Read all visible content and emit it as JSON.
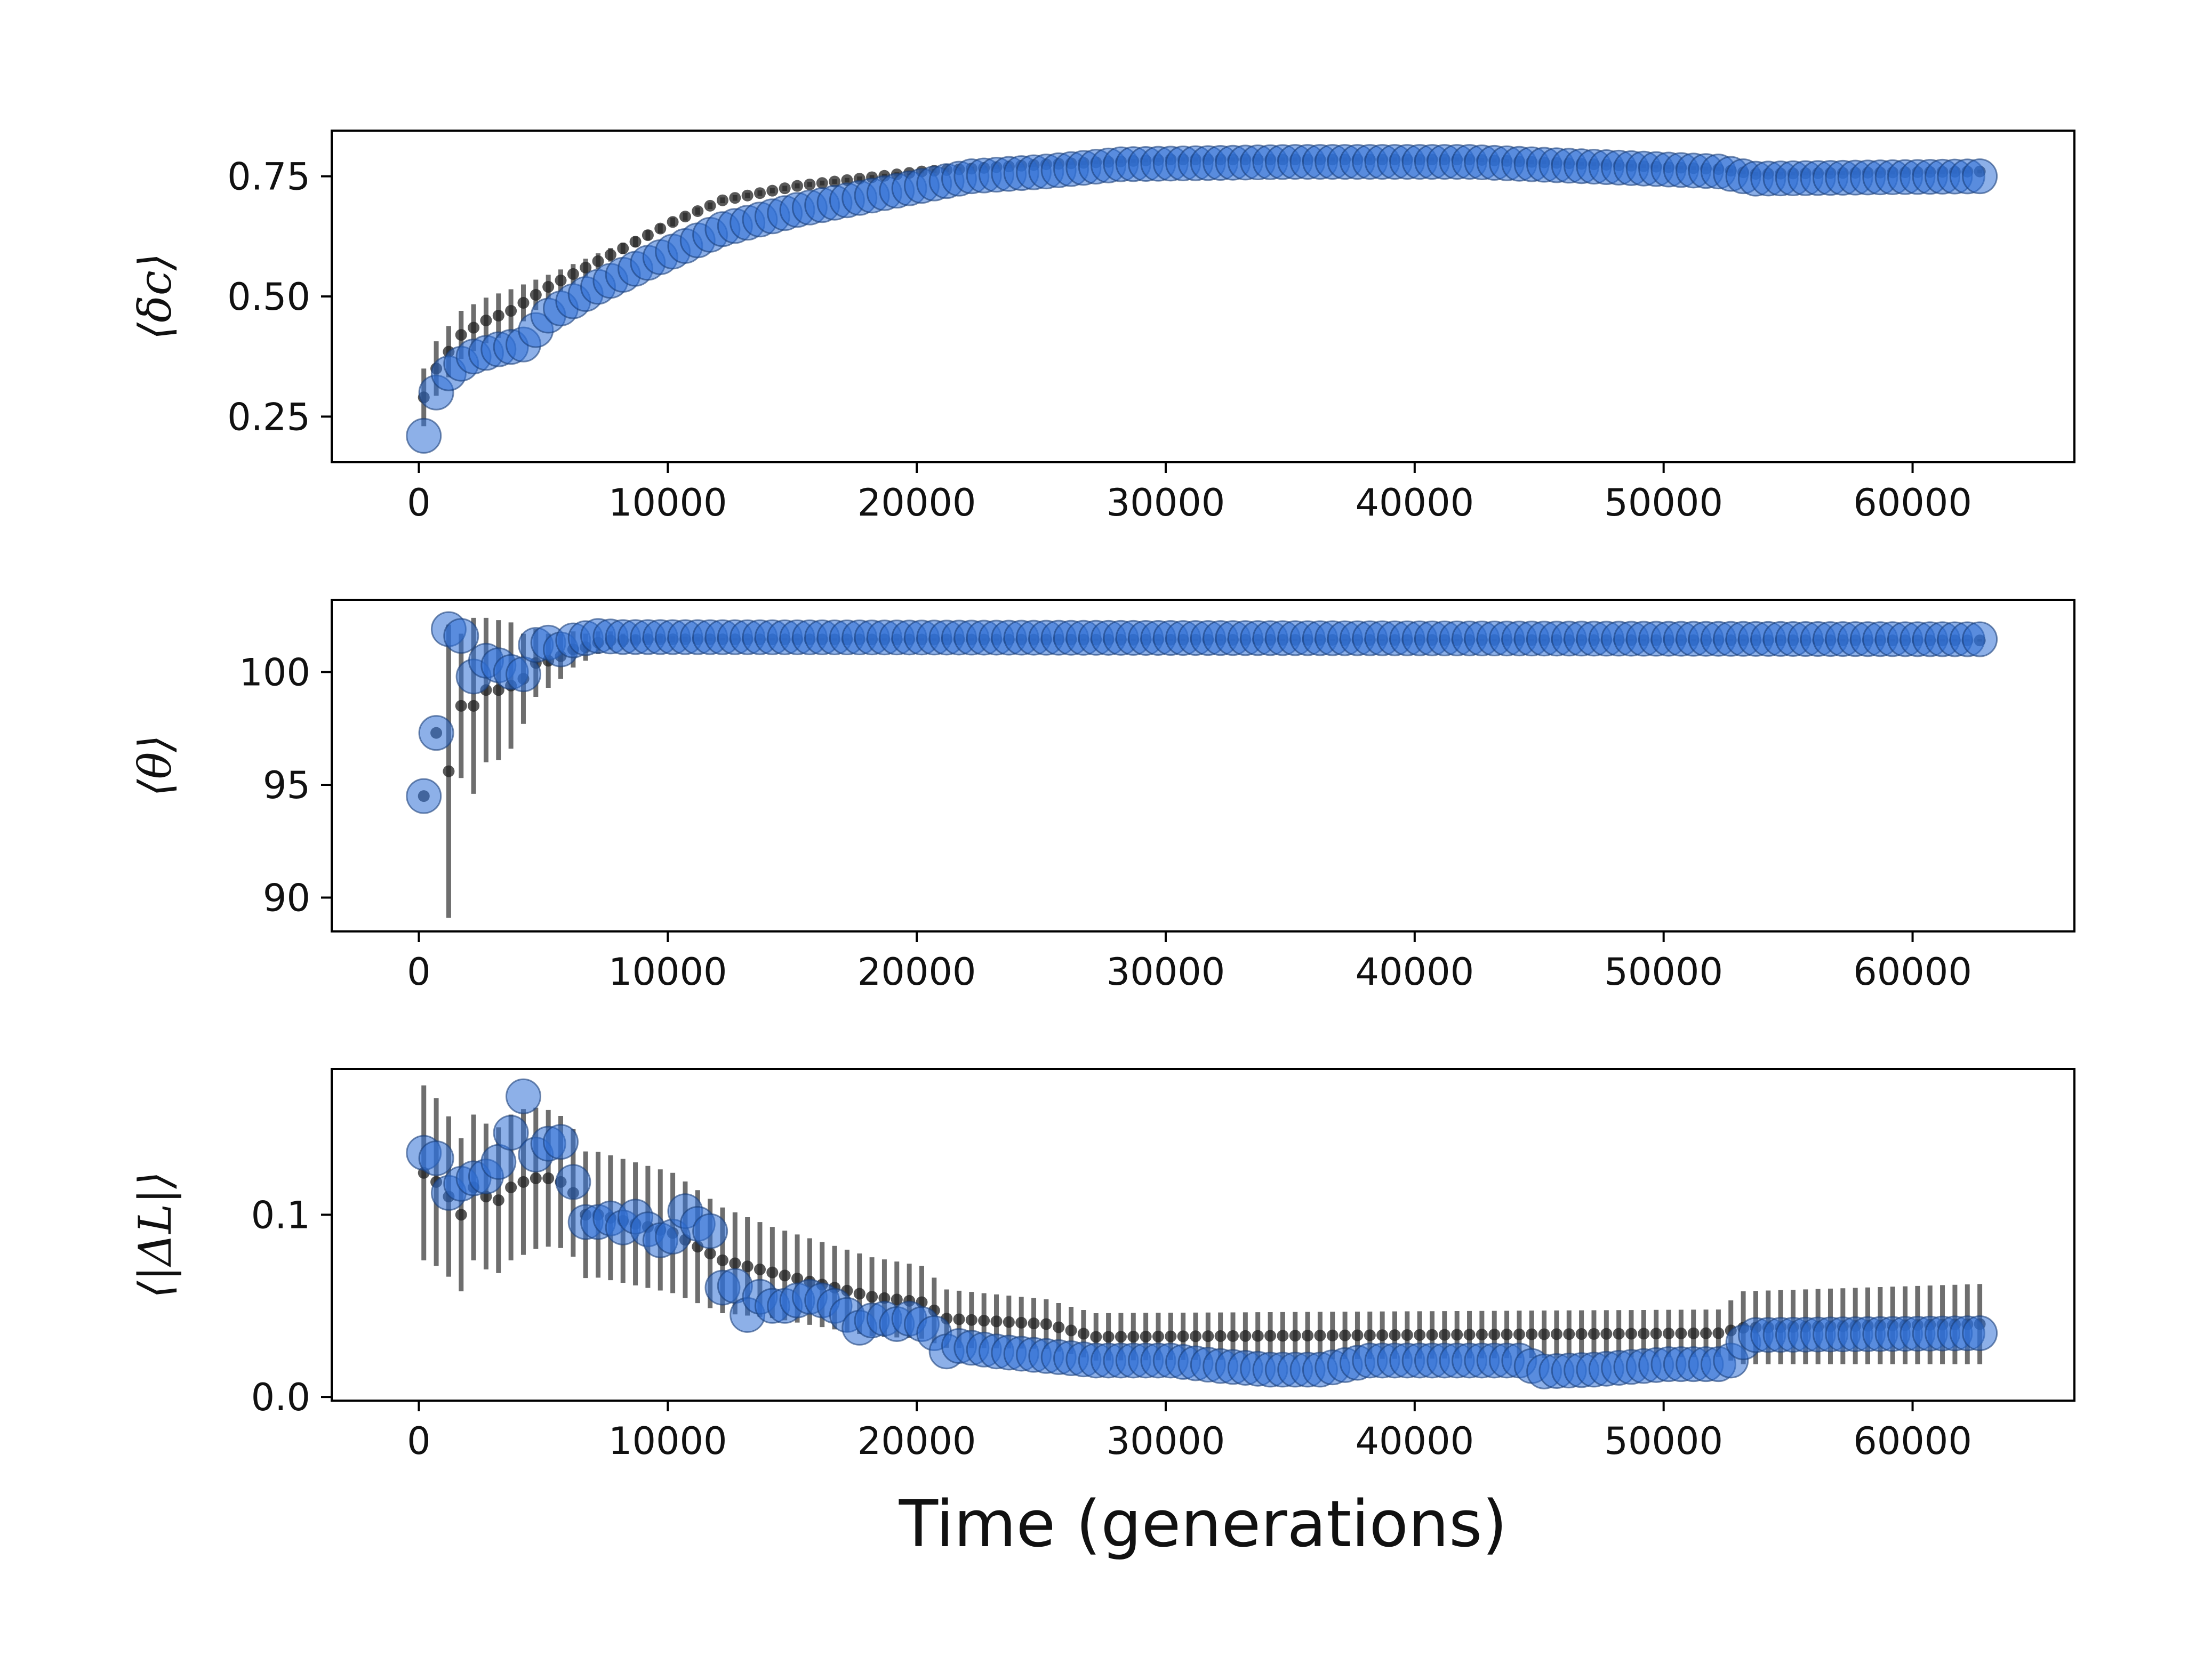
{
  "colors": {
    "marker_fill": "#2f6fd6",
    "marker_edge": "#1a3f7a",
    "mean_dot": "#222222",
    "errorbar": "#555555",
    "axes": "#000000"
  },
  "chart_data": [
    {
      "type": "scatter",
      "ylabel": "⟨δc⟩",
      "xlabel": "",
      "xlim": [
        -3500,
        66500
      ],
      "ylim": [
        0.155,
        0.845
      ],
      "xticks": [
        0,
        10000,
        20000,
        30000,
        40000,
        50000,
        60000
      ],
      "xtick_labels": [
        "0",
        "10000",
        "20000",
        "30000",
        "40000",
        "50000",
        "60000"
      ],
      "yticks": [
        0.25,
        0.5,
        0.75
      ],
      "ytick_labels": [
        "0.25",
        "0.50",
        "0.75"
      ],
      "circles": {
        "x_start": 200,
        "x_step": 500,
        "n": 126,
        "anchors": [
          [
            200,
            0.21
          ],
          [
            700,
            0.3
          ],
          [
            1200,
            0.34
          ],
          [
            1700,
            0.36
          ],
          [
            2200,
            0.375
          ],
          [
            3200,
            0.39
          ],
          [
            4200,
            0.4
          ],
          [
            5200,
            0.46
          ],
          [
            7200,
            0.52
          ],
          [
            9200,
            0.57
          ],
          [
            12200,
            0.64
          ],
          [
            15200,
            0.68
          ],
          [
            20200,
            0.73
          ],
          [
            22200,
            0.75
          ],
          [
            25200,
            0.76
          ],
          [
            28200,
            0.775
          ],
          [
            35200,
            0.78
          ],
          [
            42200,
            0.78
          ],
          [
            47200,
            0.77
          ],
          [
            52200,
            0.76
          ],
          [
            53700,
            0.745
          ],
          [
            62700,
            0.75
          ]
        ]
      },
      "means": {
        "x_start": 200,
        "x_step": 500,
        "n": 126,
        "anchors": [
          [
            200,
            0.29
          ],
          [
            700,
            0.35
          ],
          [
            1700,
            0.42
          ],
          [
            2700,
            0.45
          ],
          [
            3700,
            0.47
          ],
          [
            5200,
            0.52
          ],
          [
            8200,
            0.6
          ],
          [
            10200,
            0.655
          ],
          [
            12200,
            0.7
          ],
          [
            15200,
            0.73
          ],
          [
            20200,
            0.76
          ],
          [
            25200,
            0.775
          ],
          [
            30200,
            0.785
          ],
          [
            42200,
            0.785
          ],
          [
            47200,
            0.775
          ],
          [
            52200,
            0.765
          ],
          [
            53700,
            0.755
          ],
          [
            62700,
            0.76
          ]
        ]
      },
      "error": {
        "anchors": [
          [
            200,
            0.06
          ],
          [
            1700,
            0.05
          ],
          [
            3700,
            0.045
          ],
          [
            5200,
            0.025
          ],
          [
            8200,
            0.012
          ],
          [
            12200,
            0.006
          ],
          [
            20200,
            0.004
          ],
          [
            62700,
            0.004
          ]
        ]
      }
    },
    {
      "type": "scatter",
      "ylabel": "⟨θ⟩",
      "xlabel": "",
      "xlim": [
        -3500,
        66500
      ],
      "ylim": [
        88.5,
        103.2
      ],
      "xticks": [
        0,
        10000,
        20000,
        30000,
        40000,
        50000,
        60000
      ],
      "xtick_labels": [
        "0",
        "10000",
        "20000",
        "30000",
        "40000",
        "50000",
        "60000"
      ],
      "yticks": [
        90,
        95,
        100
      ],
      "ytick_labels": [
        "90",
        "95",
        "100"
      ],
      "circles": {
        "x_start": 200,
        "x_step": 500,
        "n": 126,
        "points": [
          [
            200,
            94.5
          ],
          [
            700,
            97.3
          ],
          [
            1200,
            101.9
          ],
          [
            1700,
            101.6
          ],
          [
            2200,
            99.8
          ],
          [
            2700,
            100.5
          ],
          [
            3200,
            100.3
          ],
          [
            3700,
            100.0
          ],
          [
            4200,
            99.9
          ],
          [
            4700,
            101.2
          ],
          [
            5200,
            101.3
          ],
          [
            5700,
            101.0
          ],
          [
            6200,
            101.4
          ],
          [
            6700,
            101.5
          ],
          [
            7200,
            101.6
          ]
        ],
        "anchors": [
          [
            7200,
            101.6
          ],
          [
            8200,
            101.55
          ],
          [
            62700,
            101.45
          ]
        ]
      },
      "means": {
        "x_start": 200,
        "x_step": 500,
        "n": 126,
        "points": [
          [
            1200,
            95.6
          ],
          [
            1700,
            98.5
          ],
          [
            2200,
            98.5
          ],
          [
            2700,
            99.2
          ],
          [
            3200,
            99.2
          ],
          [
            3700,
            99.4
          ],
          [
            4200,
            99.7
          ],
          [
            4700,
            100.4
          ],
          [
            5200,
            100.5
          ],
          [
            5700,
            100.7
          ],
          [
            6200,
            101.0
          ],
          [
            6700,
            101.1
          ],
          [
            7200,
            101.3
          ],
          [
            7700,
            101.4
          ],
          [
            8200,
            101.4
          ]
        ],
        "anchors": [
          [
            200,
            94.5
          ],
          [
            700,
            97.3
          ],
          [
            8200,
            101.4
          ],
          [
            9200,
            101.45
          ],
          [
            62700,
            101.4
          ]
        ]
      },
      "error": {
        "points": [
          [
            1200,
            6.5
          ],
          [
            1700,
            3.2
          ],
          [
            2200,
            3.9
          ],
          [
            2700,
            3.2
          ],
          [
            3200,
            3.1
          ],
          [
            3700,
            2.8
          ],
          [
            4200,
            2.0
          ],
          [
            4700,
            1.5
          ],
          [
            5200,
            1.2
          ],
          [
            5700,
            1.0
          ],
          [
            6200,
            0.8
          ],
          [
            6700,
            0.6
          ],
          [
            7200,
            0.5
          ],
          [
            7700,
            0.4
          ],
          [
            8200,
            0.3
          ]
        ],
        "anchors": [
          [
            200,
            0
          ],
          [
            700,
            0
          ],
          [
            8700,
            0.2
          ],
          [
            12200,
            0.05
          ],
          [
            62700,
            0.05
          ]
        ]
      }
    },
    {
      "type": "scatter",
      "ylabel": "⟨|ΔL|⟩",
      "xlabel": "Time (generations)",
      "xlim": [
        -3500,
        66500
      ],
      "ylim": [
        -0.002,
        0.18
      ],
      "xticks": [
        0,
        10000,
        20000,
        30000,
        40000,
        50000,
        60000
      ],
      "xtick_labels": [
        "0",
        "10000",
        "20000",
        "30000",
        "40000",
        "50000",
        "60000"
      ],
      "yticks": [
        0.0,
        0.1
      ],
      "ytick_labels": [
        "0.0",
        "0.1"
      ],
      "circles": {
        "x_start": 200,
        "x_step": 500,
        "n": 126,
        "points": [
          [
            200,
            0.134
          ],
          [
            700,
            0.131
          ],
          [
            1200,
            0.112
          ],
          [
            1700,
            0.117
          ],
          [
            2200,
            0.12
          ],
          [
            2700,
            0.121
          ],
          [
            3200,
            0.129
          ],
          [
            3700,
            0.145
          ],
          [
            4200,
            0.165
          ],
          [
            4700,
            0.133
          ],
          [
            5200,
            0.139
          ],
          [
            5700,
            0.14
          ],
          [
            6200,
            0.118
          ],
          [
            6700,
            0.096
          ],
          [
            7200,
            0.096
          ],
          [
            7700,
            0.098
          ],
          [
            8200,
            0.093
          ],
          [
            8700,
            0.099
          ],
          [
            9200,
            0.092
          ],
          [
            9700,
            0.086
          ],
          [
            10200,
            0.088
          ],
          [
            10700,
            0.102
          ],
          [
            11200,
            0.095
          ],
          [
            11700,
            0.091
          ],
          [
            12200,
            0.06
          ],
          [
            12700,
            0.061
          ],
          [
            13200,
            0.045
          ],
          [
            13700,
            0.055
          ],
          [
            14200,
            0.05
          ],
          [
            14700,
            0.05
          ],
          [
            15200,
            0.053
          ],
          [
            15700,
            0.055
          ],
          [
            16200,
            0.053
          ],
          [
            16700,
            0.05
          ],
          [
            17200,
            0.045
          ],
          [
            17700,
            0.038
          ],
          [
            18200,
            0.042
          ],
          [
            18700,
            0.043
          ],
          [
            19200,
            0.04
          ],
          [
            19700,
            0.043
          ],
          [
            20200,
            0.04
          ],
          [
            20700,
            0.035
          ],
          [
            21200,
            0.025
          ],
          [
            21700,
            0.028
          ]
        ],
        "anchors": [
          [
            21700,
            0.028
          ],
          [
            23200,
            0.025
          ],
          [
            27200,
            0.02
          ],
          [
            30200,
            0.02
          ],
          [
            32200,
            0.017
          ],
          [
            34200,
            0.015
          ],
          [
            36200,
            0.015
          ],
          [
            38200,
            0.02
          ],
          [
            42200,
            0.02
          ],
          [
            44200,
            0.02
          ],
          [
            45200,
            0.014
          ],
          [
            47200,
            0.015
          ],
          [
            50200,
            0.018
          ],
          [
            52200,
            0.018
          ],
          [
            52700,
            0.02
          ],
          [
            53200,
            0.03
          ],
          [
            53700,
            0.034
          ],
          [
            62700,
            0.035
          ]
        ]
      },
      "means": {
        "x_start": 200,
        "x_step": 500,
        "n": 126,
        "points": [
          [
            200,
            0.123
          ],
          [
            700,
            0.118
          ],
          [
            1200,
            0.11
          ],
          [
            1700,
            0.1
          ],
          [
            2200,
            0.115
          ],
          [
            2700,
            0.11
          ],
          [
            3200,
            0.108
          ],
          [
            3700,
            0.115
          ],
          [
            4200,
            0.118
          ],
          [
            4700,
            0.12
          ],
          [
            5200,
            0.12
          ],
          [
            5700,
            0.118
          ],
          [
            6200,
            0.112
          ],
          [
            6700,
            0.1
          ],
          [
            7200,
            0.1
          ]
        ],
        "anchors": [
          [
            7200,
            0.1
          ],
          [
            10200,
            0.09
          ],
          [
            12200,
            0.075
          ],
          [
            15200,
            0.065
          ],
          [
            18200,
            0.055
          ],
          [
            20200,
            0.052
          ],
          [
            21200,
            0.043
          ],
          [
            25200,
            0.04
          ],
          [
            27200,
            0.033
          ],
          [
            52200,
            0.035
          ],
          [
            53200,
            0.038
          ],
          [
            62700,
            0.04
          ]
        ]
      },
      "error": {
        "anchors": [
          [
            200,
            0.048
          ],
          [
            2200,
            0.04
          ],
          [
            4200,
            0.04
          ],
          [
            6200,
            0.035
          ],
          [
            10200,
            0.033
          ],
          [
            14200,
            0.025
          ],
          [
            20200,
            0.02
          ],
          [
            21200,
            0.016
          ],
          [
            26200,
            0.013
          ],
          [
            52200,
            0.013
          ],
          [
            53200,
            0.02
          ],
          [
            62700,
            0.022
          ]
        ]
      }
    }
  ]
}
